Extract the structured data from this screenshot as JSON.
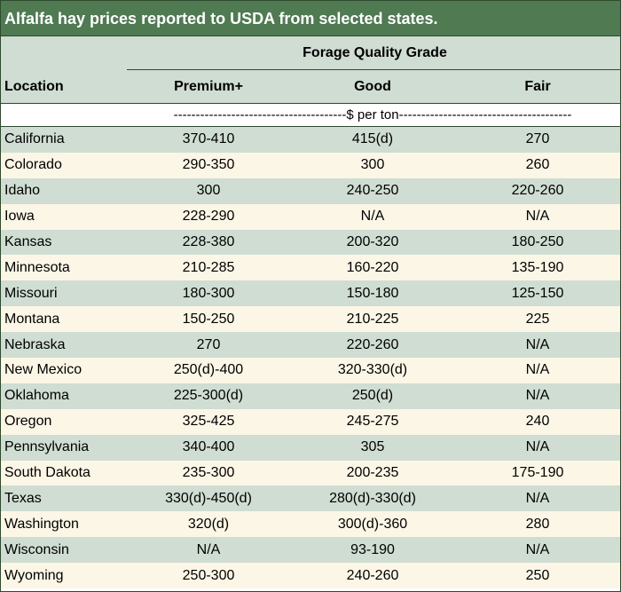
{
  "title": "Alfalfa hay prices reported to USDA from selected states.",
  "header": {
    "group_label": "Forage Quality Grade",
    "location_label": "Location",
    "columns": [
      "Premium+",
      "Good",
      "Fair"
    ]
  },
  "units_label": "---------------------------------------$ per ton---------------------------------------",
  "rows": [
    {
      "location": "California",
      "premium": "370-410",
      "good": "415(d)",
      "fair": "270"
    },
    {
      "location": "Colorado",
      "premium": "290-350",
      "good": "300",
      "fair": "260"
    },
    {
      "location": "Idaho",
      "premium": "300",
      "good": "240-250",
      "fair": "220-260"
    },
    {
      "location": "Iowa",
      "premium": "228-290",
      "good": "N/A",
      "fair": "N/A"
    },
    {
      "location": "Kansas",
      "premium": "228-380",
      "good": "200-320",
      "fair": "180-250"
    },
    {
      "location": "Minnesota",
      "premium": "210-285",
      "good": "160-220",
      "fair": "135-190"
    },
    {
      "location": "Missouri",
      "premium": "180-300",
      "good": "150-180",
      "fair": "125-150"
    },
    {
      "location": "Montana",
      "premium": "150-250",
      "good": "210-225",
      "fair": "225"
    },
    {
      "location": "Nebraska",
      "premium": "270",
      "good": "220-260",
      "fair": "N/A"
    },
    {
      "location": "New Mexico",
      "premium": "250(d)-400",
      "good": "320-330(d)",
      "fair": "N/A"
    },
    {
      "location": "Oklahoma",
      "premium": "225-300(d)",
      "good": "250(d)",
      "fair": "N/A"
    },
    {
      "location": "Oregon",
      "premium": "325-425",
      "good": "245-275",
      "fair": "240"
    },
    {
      "location": "Pennsylvania",
      "premium": "340-400",
      "good": "305",
      "fair": "N/A"
    },
    {
      "location": "South Dakota",
      "premium": "235-300",
      "good": "200-235",
      "fair": "175-190"
    },
    {
      "location": "Texas",
      "premium": "330(d)-450(d)",
      "good": "280(d)-330(d)",
      "fair": "N/A"
    },
    {
      "location": "Washington",
      "premium": "320(d)",
      "good": "300(d)-360",
      "fair": "280"
    },
    {
      "location": "Wisconsin",
      "premium": "N/A",
      "good": "93-190",
      "fair": "N/A"
    },
    {
      "location": "Wyoming",
      "premium": "250-300",
      "good": "240-260",
      "fair": "250"
    }
  ],
  "colors": {
    "title_bg": "#4f7a52",
    "row_green": "#cfddd2",
    "row_cream": "#fcf6e6",
    "border": "#2e4a2e"
  }
}
